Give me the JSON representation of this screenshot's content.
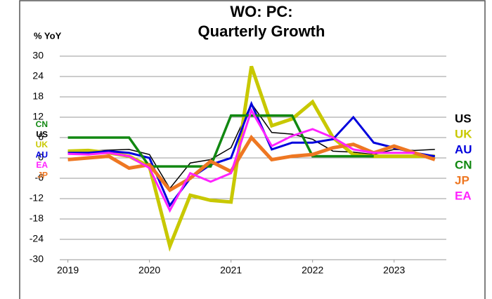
{
  "chart_data": {
    "type": "line",
    "title": [
      "WO: PC:",
      "Quarterly Growth"
    ],
    "y_label": "% YoY",
    "x": [
      2019,
      2019.25,
      2019.5,
      2019.75,
      2020,
      2020.25,
      2020.5,
      2020.75,
      2021,
      2021.25,
      2021.5,
      2021.75,
      2022,
      2022.25,
      2022.5,
      2022.75,
      2023,
      2023.25,
      2023.5
    ],
    "xlim": [
      2018.9,
      2023.64
    ],
    "xticks": [
      2019,
      2020,
      2021,
      2022,
      2023
    ],
    "ylim": [
      -30,
      30
    ],
    "yticks": [
      30,
      24,
      18,
      12,
      6,
      0,
      -6,
      -12,
      -18,
      -24,
      -30
    ],
    "grid": true,
    "series": [
      {
        "name": "US",
        "color": "#000000",
        "width": 1.5,
        "values": [
          1.8,
          2,
          2.3,
          2.5,
          1,
          -9,
          -1.5,
          -0.5,
          3,
          16,
          7.5,
          7,
          5.5,
          2,
          1.7,
          1,
          2.5,
          2.2,
          2.5
        ]
      },
      {
        "name": "UK",
        "color": "#c8c800",
        "width": 5,
        "values": [
          2,
          2.2,
          1.5,
          0.5,
          -2.5,
          -26,
          -11,
          -12.5,
          -13,
          27,
          9.5,
          11.5,
          16.5,
          6,
          1,
          0.5,
          0.5,
          0.5,
          0.5
        ]
      },
      {
        "name": "AU",
        "color": "#0000dd",
        "width": 3,
        "values": [
          1.5,
          1.5,
          2,
          1.5,
          0,
          -14,
          -6,
          -2,
          0,
          16,
          2.5,
          4.5,
          4.5,
          5.5,
          12,
          4.5,
          3,
          1.5,
          0.5
        ]
      },
      {
        "name": "CN",
        "color": "#118811",
        "width": 3.5,
        "values": [
          6,
          6,
          6,
          6,
          -2.5,
          -2.5,
          -2.5,
          -2.5,
          12.5,
          12.5,
          12.5,
          12.5,
          0.5,
          0.5,
          0.5,
          0.5,
          null,
          null,
          null
        ]
      },
      {
        "name": "JP",
        "color": "#ee7722",
        "width": 5,
        "values": [
          -0.5,
          0,
          0.5,
          -3,
          -2,
          -9.5,
          -6,
          -1,
          -4,
          6,
          -0.5,
          0.5,
          1,
          3,
          4,
          1.5,
          3.5,
          1.5,
          -0.5
        ]
      },
      {
        "name": "EA",
        "color": "#ff22ff",
        "width": 3,
        "values": [
          1.2,
          1,
          1.5,
          0.5,
          -3,
          -15.5,
          -4.5,
          -7,
          -4.5,
          14,
          3.5,
          6.5,
          8.5,
          6,
          2.5,
          1.5,
          1.5,
          1.5,
          null
        ]
      }
    ]
  }
}
